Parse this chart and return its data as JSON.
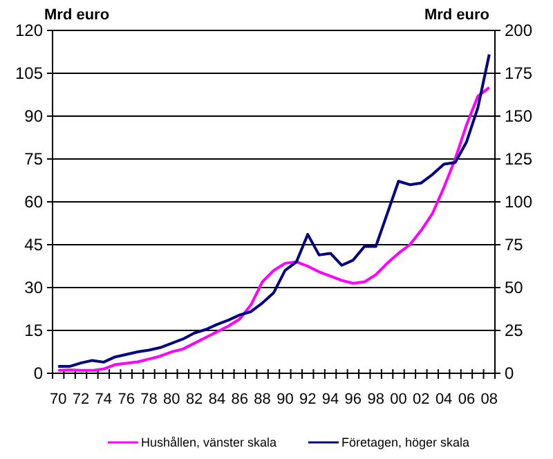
{
  "chart_data": {
    "type": "line",
    "ylabel": "Mrd euro",
    "y2label": "Mrd euro",
    "categories": [
      "70",
      null,
      "72",
      null,
      "74",
      null,
      "76",
      null,
      "78",
      null,
      "80",
      null,
      "82",
      null,
      "84",
      null,
      "86",
      null,
      "88",
      null,
      "90",
      null,
      "92",
      null,
      "94",
      null,
      "96",
      null,
      "98",
      null,
      "00",
      null,
      "02",
      null,
      "04",
      null,
      "06",
      null,
      "08"
    ],
    "series": [
      {
        "name": "Hushållen, vänster skala",
        "color": "#ff00ff",
        "values": [
          1,
          1.2,
          1,
          1,
          1.5,
          3,
          3.5,
          4,
          5,
          6,
          7.5,
          8.5,
          10.5,
          12.5,
          14.5,
          16.5,
          19,
          24,
          32,
          36,
          38.5,
          39,
          37.5,
          35.5,
          34,
          32.5,
          31.5,
          32,
          34.5,
          38.5,
          42,
          45,
          50,
          56,
          65,
          75,
          87,
          97,
          100
        ]
      },
      {
        "name": "Företagen, höger skala",
        "color": "#000080",
        "axis": "y2",
        "values": [
          4,
          4,
          6,
          7.5,
          6.5,
          9.5,
          11,
          12.5,
          13.5,
          15,
          17.5,
          20,
          23.5,
          25.5,
          28.5,
          31,
          34,
          36,
          41,
          47,
          60,
          65,
          81,
          69,
          70,
          63,
          66,
          74,
          74,
          93,
          112,
          110,
          111,
          116,
          122,
          123,
          135,
          155,
          186
        ]
      }
    ],
    "ylim": [
      0,
      120
    ],
    "yticks": [
      0,
      15,
      30,
      45,
      60,
      75,
      90,
      105,
      120
    ],
    "y2lim": [
      0,
      200
    ],
    "y2ticks": [
      0,
      25,
      50,
      75,
      100,
      125,
      150,
      175,
      200
    ],
    "grid": "y",
    "legend": "bottom",
    "marker": "none",
    "line_style": "solid"
  }
}
